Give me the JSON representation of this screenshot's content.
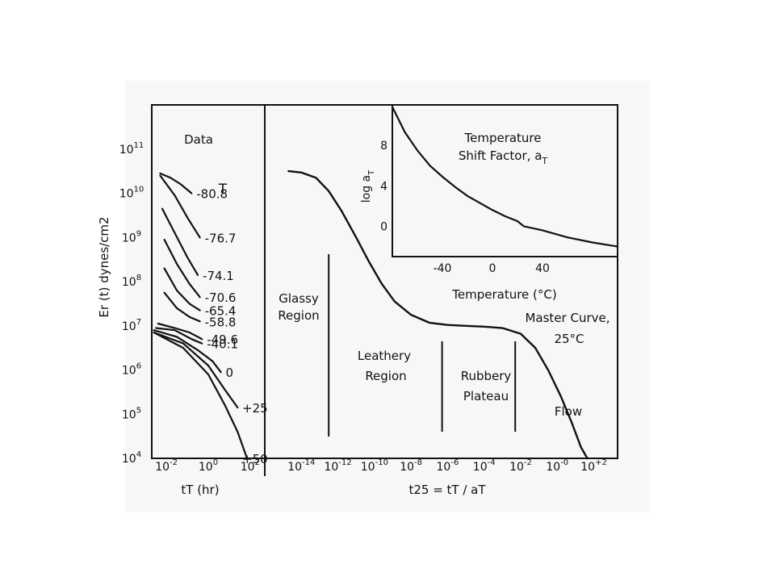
{
  "panels": {
    "data_panel_label": "Data",
    "temperature_header": "T",
    "temperature_labels": [
      "-80.8",
      "-76.7",
      "-74.1",
      "-70.6",
      "-65.4",
      "-58.8",
      "-49.6",
      "-40.1",
      "0",
      "+25",
      "+50"
    ],
    "left_xlabel": "tT (hr)",
    "main_xlabel": "t25 = tT / aT",
    "ylabel": "Er (t) dynes/cm2",
    "region_labels": {
      "glassy": [
        "Glassy",
        "Region"
      ],
      "leathery": [
        "Leathery",
        "Region"
      ],
      "rubbery": [
        "Rubbery",
        "Plateau"
      ],
      "flow": [
        "Flow"
      ]
    },
    "master_curve_label": [
      "Master Curve,",
      "25°C"
    ]
  },
  "chart_data": [
    {
      "type": "line",
      "name": "data",
      "ylabel": "Er (t) dynes/cm2",
      "xlabel": "tT (hr)",
      "x_scale": "log10 (hr)",
      "y_scale": "log10 (dynes/cm2)",
      "x_log_range": [
        -2.7,
        2.7
      ],
      "y_log_range": [
        4,
        12
      ],
      "x_ticks": [
        "10^-2",
        "10^0",
        "10^2"
      ],
      "y_ticks": [
        "10^4",
        "10^5",
        "10^6",
        "10^7",
        "10^8",
        "10^9",
        "10^10",
        "10^11"
      ],
      "series": [
        {
          "name": "-80.8",
          "points": [
            [
              -2.3,
              10.45
            ],
            [
              -1.8,
              10.35
            ],
            [
              -1.3,
              10.2
            ],
            [
              -0.8,
              10.0
            ]
          ]
        },
        {
          "name": "-76.7",
          "points": [
            [
              -2.3,
              10.4
            ],
            [
              -1.6,
              9.95
            ],
            [
              -1.0,
              9.45
            ],
            [
              -0.4,
              9.0
            ]
          ]
        },
        {
          "name": "-74.1",
          "points": [
            [
              -2.2,
              9.65
            ],
            [
              -1.6,
              9.1
            ],
            [
              -1.0,
              8.55
            ],
            [
              -0.5,
              8.15
            ]
          ]
        },
        {
          "name": "-70.6",
          "points": [
            [
              -2.1,
              8.95
            ],
            [
              -1.5,
              8.4
            ],
            [
              -0.9,
              7.95
            ],
            [
              -0.4,
              7.65
            ]
          ]
        },
        {
          "name": "-65.4",
          "points": [
            [
              -2.1,
              8.3
            ],
            [
              -1.5,
              7.8
            ],
            [
              -0.9,
              7.5
            ],
            [
              -0.4,
              7.35
            ]
          ]
        },
        {
          "name": "-58.8",
          "points": [
            [
              -2.1,
              7.75
            ],
            [
              -1.5,
              7.4
            ],
            [
              -0.9,
              7.2
            ],
            [
              -0.4,
              7.1
            ]
          ]
        },
        {
          "name": "-49.6",
          "points": [
            [
              -2.4,
              7.05
            ],
            [
              -1.6,
              6.95
            ],
            [
              -0.9,
              6.85
            ],
            [
              -0.3,
              6.7
            ]
          ]
        },
        {
          "name": "-40.1",
          "points": [
            [
              -2.5,
              6.95
            ],
            [
              -1.6,
              6.9
            ],
            [
              -0.8,
              6.7
            ],
            [
              -0.3,
              6.6
            ]
          ]
        },
        {
          "name": "0",
          "points": [
            [
              -2.6,
              6.9
            ],
            [
              -1.5,
              6.75
            ],
            [
              -0.5,
              6.45
            ],
            [
              0.2,
              6.2
            ],
            [
              0.6,
              5.95
            ]
          ]
        },
        {
          "name": "+25",
          "points": [
            [
              -2.6,
              6.85
            ],
            [
              -1.2,
              6.6
            ],
            [
              0.0,
              6.1
            ],
            [
              0.8,
              5.55
            ],
            [
              1.4,
              5.15
            ]
          ]
        },
        {
          "name": "+50",
          "points": [
            [
              -2.6,
              6.85
            ],
            [
              -1.2,
              6.5
            ],
            [
              0.0,
              5.9
            ],
            [
              0.8,
              5.2
            ],
            [
              1.4,
              4.6
            ],
            [
              1.7,
              4.2
            ],
            [
              1.85,
              4.0
            ]
          ]
        }
      ]
    },
    {
      "type": "line",
      "name": "master",
      "xlabel": "t25 = tT / aT",
      "x_scale": "log10",
      "x_log_range": [
        -16.0,
        3.3
      ],
      "x_ticks": [
        "10^-14",
        "10^-12",
        "10^-10",
        "10^-8",
        "10^-6",
        "10^-4",
        "10^-2",
        "10^-0",
        "10^+2"
      ],
      "series": [
        {
          "name": "Master Curve, 25°C",
          "points": [
            [
              -14.7,
              10.5
            ],
            [
              -14.0,
              10.47
            ],
            [
              -13.2,
              10.35
            ],
            [
              -12.5,
              10.05
            ],
            [
              -11.8,
              9.6
            ],
            [
              -11.0,
              9.0
            ],
            [
              -10.3,
              8.45
            ],
            [
              -9.6,
              7.95
            ],
            [
              -8.9,
              7.55
            ],
            [
              -8.0,
              7.25
            ],
            [
              -7.0,
              7.07
            ],
            [
              -6.0,
              7.02
            ],
            [
              -5.0,
              7.0
            ],
            [
              -4.0,
              6.98
            ],
            [
              -3.0,
              6.95
            ],
            [
              -2.0,
              6.82
            ],
            [
              -1.2,
              6.5
            ],
            [
              -0.5,
              6.0
            ],
            [
              0.2,
              5.4
            ],
            [
              0.8,
              4.8
            ],
            [
              1.3,
              4.25
            ],
            [
              1.65,
              4.0
            ]
          ]
        }
      ],
      "region_boundaries_log_x": [
        -12.5,
        -6.3,
        -2.3
      ]
    },
    {
      "type": "line",
      "name": "shift_factor",
      "title": "Temperature Shift Factor, aT",
      "xlabel": "Temperature (°C)",
      "ylabel": "log aT",
      "xlim": [
        -80,
        100
      ],
      "ylim": [
        -3,
        12
      ],
      "x_ticks": [
        -40,
        0,
        40
      ],
      "y_ticks": [
        0,
        4,
        8
      ],
      "series": [
        {
          "name": "log aT",
          "points": [
            [
              -80,
              11.8
            ],
            [
              -70,
              9.3
            ],
            [
              -60,
              7.5
            ],
            [
              -50,
              6.0
            ],
            [
              -40,
              4.9
            ],
            [
              -30,
              3.9
            ],
            [
              -20,
              3.0
            ],
            [
              -10,
              2.3
            ],
            [
              0,
              1.6
            ],
            [
              10,
              1.0
            ],
            [
              20,
              0.5
            ],
            [
              25,
              0.0
            ],
            [
              40,
              -0.4
            ],
            [
              60,
              -1.1
            ],
            [
              80,
              -1.6
            ],
            [
              100,
              -2.0
            ]
          ]
        }
      ]
    }
  ]
}
